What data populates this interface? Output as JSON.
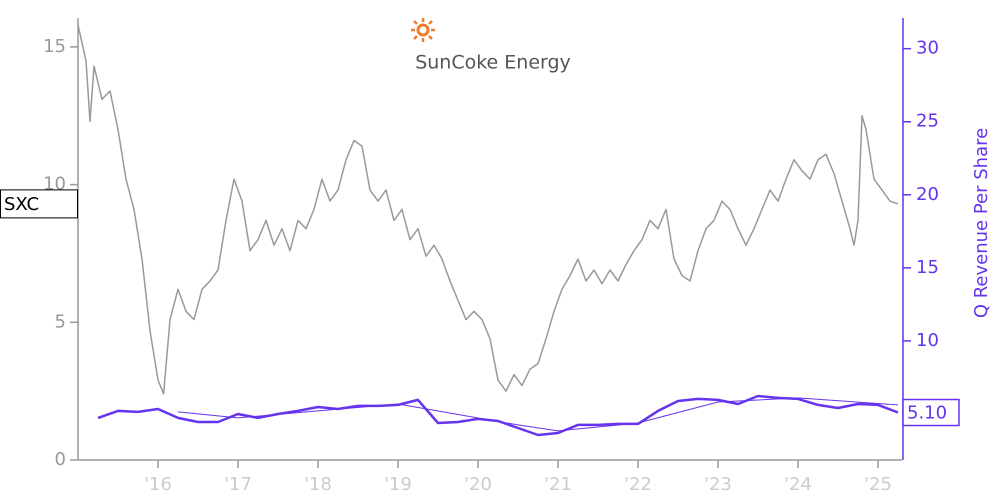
{
  "chart_data": {
    "type": "line",
    "logo": "SunCoke Energy",
    "y2_label": "Q Revenue Per Share",
    "xlim": [
      2015.0,
      2025.3
    ],
    "xticks": [
      {
        "value": 2016,
        "label": "'16"
      },
      {
        "value": 2017,
        "label": "'17"
      },
      {
        "value": 2018,
        "label": "'18"
      },
      {
        "value": 2019,
        "label": "'19"
      },
      {
        "value": 2020,
        "label": "'20"
      },
      {
        "value": 2021,
        "label": "'21"
      },
      {
        "value": 2022,
        "label": "'22"
      },
      {
        "value": 2023,
        "label": "'23"
      },
      {
        "value": 2024,
        "label": "'24"
      },
      {
        "value": 2025,
        "label": "'25"
      }
    ],
    "ylim": [
      0,
      16.05
    ],
    "yticks": [
      0,
      5,
      10,
      15
    ],
    "y2lim": [
      1.85,
      32.1
    ],
    "y2ticks": [
      10,
      15,
      20,
      25,
      30
    ],
    "series": [
      {
        "name": "SXC",
        "color": "#999999",
        "x": [
          2015.0,
          2015.1,
          2015.15,
          2015.2,
          2015.3,
          2015.4,
          2015.5,
          2015.6,
          2015.7,
          2015.8,
          2015.9,
          2016.0,
          2016.07,
          2016.15,
          2016.25,
          2016.35,
          2016.45,
          2016.55,
          2016.65,
          2016.75,
          2016.85,
          2016.95,
          2017.05,
          2017.15,
          2017.25,
          2017.35,
          2017.45,
          2017.55,
          2017.65,
          2017.75,
          2017.85,
          2017.95,
          2018.05,
          2018.15,
          2018.25,
          2018.35,
          2018.45,
          2018.55,
          2018.65,
          2018.75,
          2018.85,
          2018.95,
          2019.05,
          2019.15,
          2019.25,
          2019.35,
          2019.45,
          2019.55,
          2019.65,
          2019.75,
          2019.85,
          2019.95,
          2020.05,
          2020.15,
          2020.25,
          2020.35,
          2020.45,
          2020.55,
          2020.65,
          2020.75,
          2020.85,
          2020.95,
          2021.05,
          2021.15,
          2021.25,
          2021.35,
          2021.45,
          2021.55,
          2021.65,
          2021.75,
          2021.85,
          2021.95,
          2022.05,
          2022.15,
          2022.25,
          2022.35,
          2022.45,
          2022.55,
          2022.65,
          2022.75,
          2022.85,
          2022.95,
          2023.05,
          2023.15,
          2023.25,
          2023.35,
          2023.45,
          2023.55,
          2023.65,
          2023.75,
          2023.85,
          2023.95,
          2024.05,
          2024.15,
          2024.25,
          2024.35,
          2024.45,
          2024.55,
          2024.65,
          2024.7,
          2024.75,
          2024.8,
          2024.85,
          2024.95,
          2025.05,
          2025.15,
          2025.25
        ],
        "values": [
          15.8,
          14.5,
          12.3,
          14.3,
          13.1,
          13.4,
          12.0,
          10.2,
          9.1,
          7.3,
          4.7,
          2.9,
          2.4,
          5.1,
          6.2,
          5.4,
          5.1,
          6.2,
          6.5,
          6.9,
          8.7,
          10.2,
          9.4,
          7.6,
          8.0,
          8.7,
          7.8,
          8.4,
          7.6,
          8.7,
          8.4,
          9.1,
          10.2,
          9.4,
          9.8,
          10.9,
          11.6,
          11.4,
          9.8,
          9.4,
          9.8,
          8.7,
          9.1,
          8.0,
          8.4,
          7.4,
          7.8,
          7.3,
          6.5,
          5.8,
          5.1,
          5.4,
          5.1,
          4.4,
          2.9,
          2.5,
          3.1,
          2.7,
          3.3,
          3.5,
          4.4,
          5.4,
          6.2,
          6.7,
          7.3,
          6.5,
          6.9,
          6.4,
          6.9,
          6.5,
          7.1,
          7.6,
          8.0,
          8.7,
          8.4,
          9.1,
          7.3,
          6.7,
          6.5,
          7.6,
          8.4,
          8.7,
          9.4,
          9.1,
          8.4,
          7.8,
          8.4,
          9.1,
          9.8,
          9.4,
          10.2,
          10.9,
          10.5,
          10.2,
          10.9,
          11.1,
          10.4,
          9.4,
          8.4,
          7.8,
          8.7,
          12.5,
          12.0,
          10.2,
          9.8,
          9.4,
          9.3
        ]
      },
      {
        "color": "#6633ee",
        "axis": "y2",
        "width": 2.5,
        "x": [
          2015.25,
          2015.5,
          2015.75,
          2016.0,
          2016.25,
          2016.5,
          2016.75,
          2017.0,
          2017.25,
          2017.5,
          2017.75,
          2018.0,
          2018.25,
          2018.5,
          2018.75,
          2019.0,
          2019.25,
          2019.5,
          2019.75,
          2020.0,
          2020.25,
          2020.5,
          2020.75,
          2021.0,
          2021.25,
          2021.5,
          2021.75,
          2022.0,
          2022.25,
          2022.5,
          2022.75,
          2023.0,
          2023.25,
          2023.5,
          2023.75,
          2024.0,
          2024.25,
          2024.5,
          2024.75,
          2025.0,
          2025.25
        ],
        "values": [
          4.73,
          5.21,
          5.14,
          5.34,
          4.73,
          4.45,
          4.45,
          5.0,
          4.73,
          5.0,
          5.21,
          5.48,
          5.34,
          5.55,
          5.55,
          5.62,
          5.96,
          4.38,
          4.45,
          4.66,
          4.52,
          4.04,
          3.56,
          3.7,
          4.25,
          4.25,
          4.32,
          4.32,
          5.21,
          5.89,
          6.03,
          5.96,
          5.68,
          6.23,
          6.1,
          6.03,
          5.62,
          5.41,
          5.68,
          5.62,
          5.1
        ],
        "value_labels": [
          null,
          null,
          null,
          null,
          null,
          null,
          null,
          null,
          null,
          null,
          null,
          null,
          null,
          null,
          null,
          null,
          null,
          null,
          null,
          null,
          null,
          null,
          null,
          null,
          null,
          null,
          null,
          null,
          null,
          null,
          null,
          null,
          null,
          null,
          null,
          null,
          null,
          null,
          null,
          null,
          "5.10"
        ]
      },
      {
        "color": "#6633ee",
        "axis": "y2",
        "width": 1,
        "x": [
          2016.25,
          2017.0,
          2018.0,
          2019.0,
          2020.5,
          2021.0,
          2022.0,
          2023.0,
          2024.0,
          2025.25
        ],
        "values": [
          5.14,
          4.73,
          5.21,
          5.68,
          4.25,
          3.84,
          4.38,
          5.82,
          6.1,
          5.62
        ]
      }
    ]
  }
}
